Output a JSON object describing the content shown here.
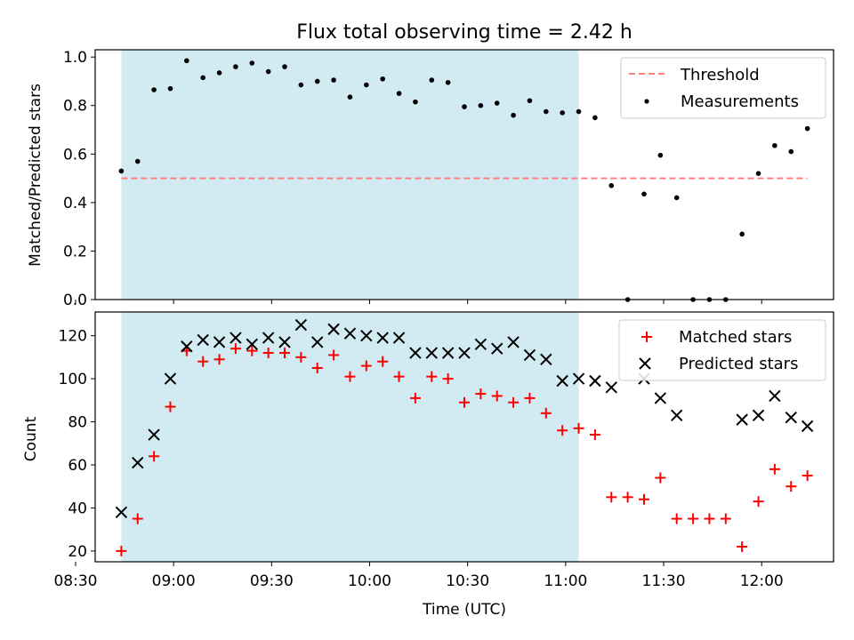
{
  "title": "Flux total observing time = 2.42 h",
  "colors": {
    "shade": "#add8e6",
    "threshold": "#ff7f7f",
    "matched": "#ff0000",
    "predicted": "#000000",
    "measurement": "#000000"
  },
  "chart_data": [
    {
      "type": "scatter",
      "ylabel": "Matched/Predicted stars",
      "xlabel": "",
      "xlim": [
        516,
        742
      ],
      "ylim": [
        0,
        1.03
      ],
      "yticks": [
        0.0,
        0.2,
        0.4,
        0.6,
        0.8,
        1.0
      ],
      "ytick_labels": [
        "0.0",
        "0.2",
        "0.4",
        "0.6",
        "0.8",
        "1.0"
      ],
      "shaded_span": [
        524,
        664
      ],
      "threshold": {
        "name": "Threshold",
        "value": 0.5,
        "x_range": [
          524,
          734
        ],
        "style": "dashed"
      },
      "legend": {
        "placement": "top-right",
        "entries": [
          "Threshold",
          "Measurements"
        ]
      },
      "series": [
        {
          "name": "Measurements",
          "marker": "dot",
          "x": [
            524,
            529,
            534,
            539,
            544,
            549,
            554,
            559,
            564,
            569,
            574,
            579,
            584,
            589,
            594,
            599,
            604,
            609,
            614,
            619,
            624,
            629,
            634,
            639,
            644,
            649,
            654,
            659,
            664,
            669,
            674,
            679,
            684,
            689,
            694,
            699,
            704,
            709,
            714,
            719,
            724,
            729,
            734
          ],
          "y": [
            0.53,
            0.57,
            0.865,
            0.87,
            0.985,
            0.915,
            0.935,
            0.96,
            0.975,
            0.94,
            0.96,
            0.885,
            0.9,
            0.905,
            0.835,
            0.885,
            0.91,
            0.85,
            0.815,
            0.905,
            0.895,
            0.795,
            0.8,
            0.81,
            0.76,
            0.82,
            0.775,
            0.77,
            0.775,
            0.75,
            0.47,
            0.0,
            0.435,
            0.595,
            0.42,
            0.0,
            0.0,
            0.0,
            0.27,
            0.52,
            0.635,
            0.61,
            0.705
          ]
        }
      ]
    },
    {
      "type": "scatter",
      "ylabel": "Count",
      "xlabel": "Time (UTC)",
      "xlim": [
        516,
        742
      ],
      "ylim": [
        15,
        131
      ],
      "yticks": [
        20,
        40,
        60,
        80,
        100,
        120
      ],
      "ytick_labels": [
        "20",
        "40",
        "60",
        "80",
        "100",
        "120"
      ],
      "xticks": [
        510,
        540,
        570,
        600,
        630,
        660,
        690,
        720
      ],
      "xtick_labels": [
        "08:30",
        "09:00",
        "09:30",
        "10:00",
        "10:30",
        "11:00",
        "11:30",
        "12:00"
      ],
      "shaded_span": [
        524,
        664
      ],
      "legend": {
        "placement": "top-right",
        "entries": [
          "Matched stars",
          "Predicted stars"
        ]
      },
      "series": [
        {
          "name": "Matched stars",
          "marker": "plus",
          "x": [
            524,
            529,
            534,
            539,
            544,
            549,
            554,
            559,
            564,
            569,
            574,
            579,
            584,
            589,
            594,
            599,
            604,
            609,
            614,
            619,
            624,
            629,
            634,
            639,
            644,
            649,
            654,
            659,
            664,
            669,
            674,
            679,
            684,
            689,
            694,
            699,
            704,
            709,
            714,
            719,
            724,
            729,
            734
          ],
          "y": [
            20,
            35,
            64,
            87,
            113,
            108,
            109,
            114,
            113,
            112,
            112,
            110,
            105,
            111,
            101,
            106,
            108,
            101,
            91,
            101,
            100,
            89,
            93,
            92,
            89,
            91,
            84,
            76,
            77,
            74,
            45,
            45,
            44,
            54,
            35,
            35,
            35,
            35,
            22,
            43,
            58,
            50,
            55
          ]
        },
        {
          "name": "Predicted stars",
          "marker": "x",
          "x": [
            524,
            529,
            534,
            539,
            544,
            549,
            554,
            559,
            564,
            569,
            574,
            579,
            584,
            589,
            594,
            599,
            604,
            609,
            614,
            619,
            624,
            629,
            634,
            639,
            644,
            649,
            654,
            659,
            664,
            669,
            674,
            679,
            684,
            689,
            694,
            699,
            704,
            709,
            714,
            719,
            724,
            729,
            734
          ],
          "y": [
            38,
            61,
            74,
            100,
            115,
            118,
            117,
            119,
            116,
            119,
            117,
            125,
            117,
            123,
            121,
            120,
            119,
            119,
            112,
            112,
            112,
            112,
            116,
            114,
            117,
            111,
            109,
            99,
            100,
            99,
            96,
            null,
            100,
            91,
            83,
            null,
            null,
            null,
            81,
            83,
            92,
            82,
            78
          ]
        }
      ]
    }
  ]
}
